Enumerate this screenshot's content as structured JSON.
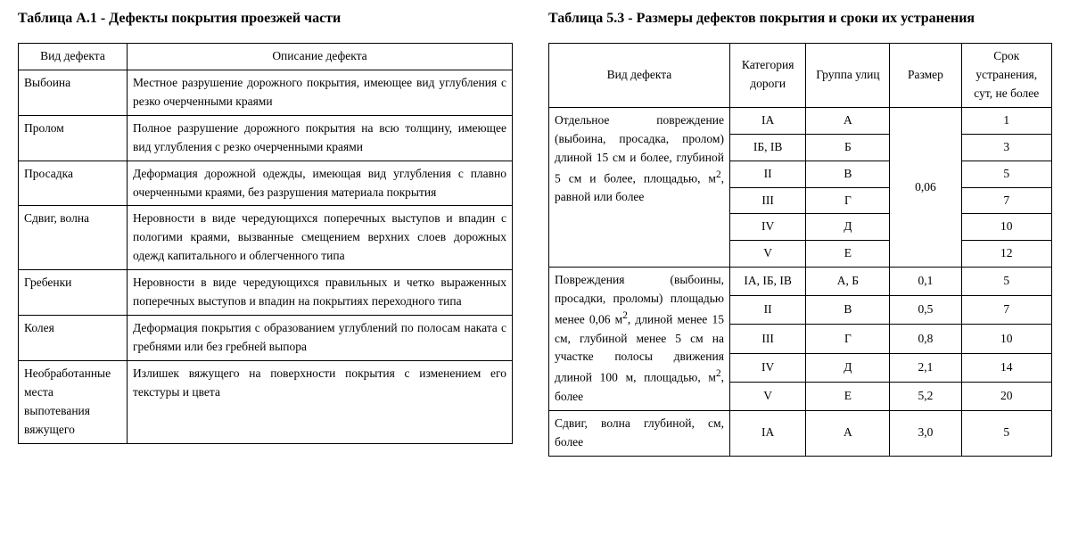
{
  "left": {
    "title": "Таблица А.1 - Дефекты покрытия проезжей части",
    "headers": {
      "col1": "Вид дефекта",
      "col2": "Описание дефекта"
    },
    "rows": [
      {
        "name": "Выбоина",
        "desc": "Местное разрушение дорожного покрытия, имеющее вид углубления с резко очерченными краями"
      },
      {
        "name": "Пролом",
        "desc": "Полное разрушение дорожного покрытия на всю толщину, имеющее вид углубления с резко очерченными краями"
      },
      {
        "name": "Просадка",
        "desc": "Деформация дорожной одежды, имеющая вид углубления с плавно очерченными краями, без разрушения материала покрытия"
      },
      {
        "name": "Сдвиг, волна",
        "desc": "Неровности в виде чередующихся поперечных выступов и впадин с пологими краями, вызванные смещением верхних слоев дорожных одежд капитального и облегченного типа"
      },
      {
        "name": "Гребенки",
        "desc": "Неровности в виде чередующихся правильных и четко выраженных поперечных выступов и впадин на покрытиях переходного типа"
      },
      {
        "name": "Колея",
        "desc": "Деформация покрытия с образованием углублений по полосам наката с гребнями или без гребней выпора"
      },
      {
        "name": "Необработанные места выпотевания вяжущего",
        "desc": "Излишек вяжущего на поверхности покрытия с изменением его текстуры и цвета"
      }
    ]
  },
  "right": {
    "title": "Таблица 5.3 - Размеры дефектов покрытия и сроки их устранения",
    "headers": {
      "col1": "Вид дефекта",
      "col2": "Категория дороги",
      "col3": "Группа улиц",
      "col4": "Размер",
      "col5": "Срок устранения, сут, не более"
    },
    "groups": [
      {
        "name_html": "Отдельное повреждение (выбоина, просадка, пролом) длиной 15 см и более, глубиной 5 см и более, площадью, м<sup>2</sup>, равной или более",
        "size": "0,06",
        "rows": [
          {
            "cat": "IА",
            "grp": "А",
            "term": "1"
          },
          {
            "cat": "IБ, IВ",
            "grp": "Б",
            "term": "3"
          },
          {
            "cat": "II",
            "grp": "В",
            "term": "5"
          },
          {
            "cat": "III",
            "grp": "Г",
            "term": "7"
          },
          {
            "cat": "IV",
            "grp": "Д",
            "term": "10"
          },
          {
            "cat": "V",
            "grp": "Е",
            "term": "12"
          }
        ]
      },
      {
        "name_html": "Повреждения (выбоины, просадки, проломы) площадью менее 0,06 м<sup>2</sup>, длиной менее 15 см, глубиной менее 5 см на участке полосы движения длиной 100 м, площадью, м<sup>2</sup>, более",
        "rows": [
          {
            "cat": "IА, IБ, IВ",
            "grp": "А, Б",
            "size": "0,1",
            "term": "5"
          },
          {
            "cat": "II",
            "grp": "В",
            "size": "0,5",
            "term": "7"
          },
          {
            "cat": "III",
            "grp": "Г",
            "size": "0,8",
            "term": "10"
          },
          {
            "cat": "IV",
            "grp": "Д",
            "size": "2,1",
            "term": "14"
          },
          {
            "cat": "V",
            "grp": "Е",
            "size": "5,2",
            "term": "20"
          }
        ]
      },
      {
        "name_html": "Сдвиг, волна глубиной, см, более",
        "size": "3,0",
        "rows": [
          {
            "cat": "IА",
            "grp": "А",
            "term": "5"
          }
        ]
      }
    ]
  },
  "style": {
    "font_family": "Times New Roman",
    "title_fontsize_pt": 12,
    "body_fontsize_pt": 10,
    "border_color": "#000000",
    "background_color": "#ffffff",
    "text_color": "#000000"
  }
}
